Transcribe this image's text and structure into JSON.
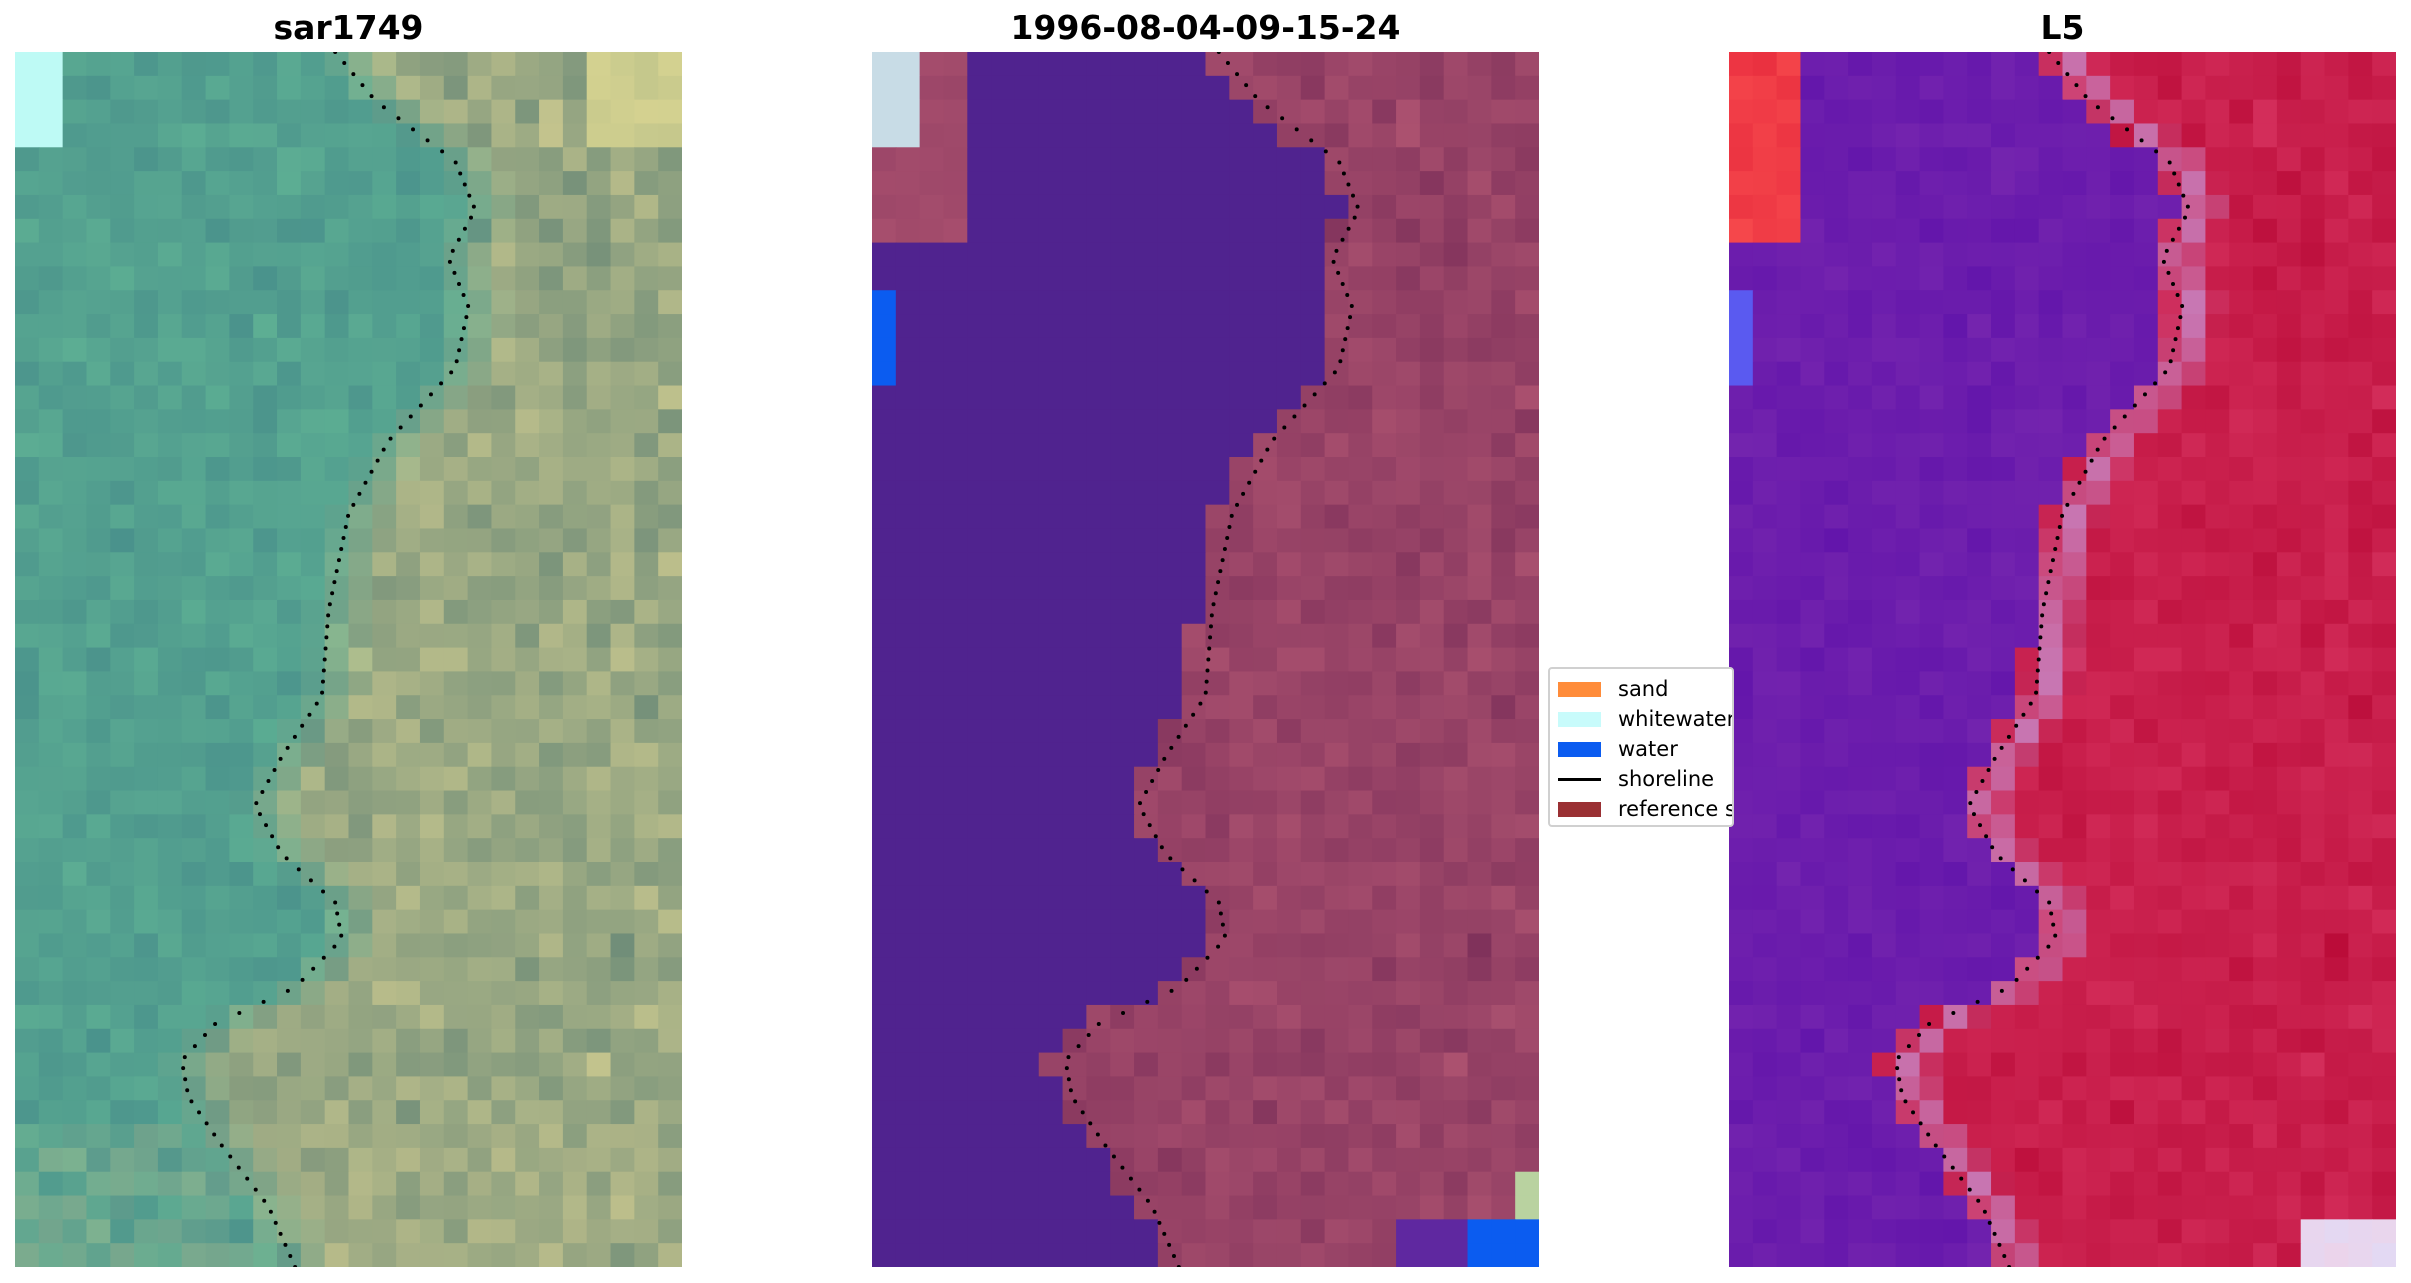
{
  "panels": [
    {
      "title": "sar1749"
    },
    {
      "title": "1996-08-04-09-15-24"
    },
    {
      "title": "L5"
    }
  ],
  "legend": {
    "items": [
      {
        "label": "sand",
        "color": "#ff8c3a",
        "kind": "patch"
      },
      {
        "label": "whitewater",
        "color": "#c8fbfb",
        "kind": "patch"
      },
      {
        "label": "water",
        "color": "#0b5cf0",
        "kind": "patch"
      },
      {
        "label": "shoreline",
        "color": "#000000",
        "kind": "line"
      },
      {
        "label": "reference s",
        "color": "#9a3033",
        "kind": "patch"
      }
    ]
  },
  "colors": {
    "water_class": "#50238f",
    "land_overlay": "#8a3a62",
    "ndwi_water": "#5a10a8",
    "ndwi_land": "#c0123c",
    "rgb_water": "#4f9a8c",
    "rgb_land": "#b8be8e"
  }
}
